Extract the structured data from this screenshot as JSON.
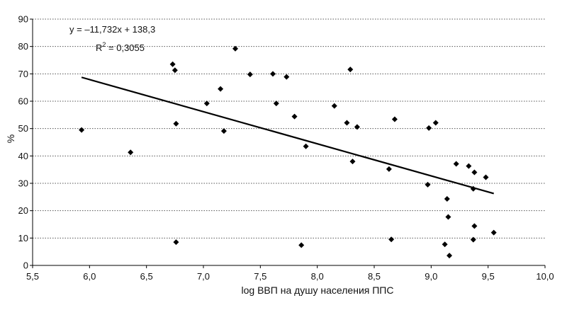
{
  "chart_data": {
    "type": "scatter",
    "xlabel": "log ВВП на душу населения ППС",
    "ylabel": "%",
    "xlim": [
      5.5,
      10.0
    ],
    "ylim": [
      0,
      90
    ],
    "x_ticks": [
      "5,5",
      "6,0",
      "6,5",
      "7,0",
      "7,5",
      "8,0",
      "8,5",
      "9,0",
      "9,5",
      "10,0"
    ],
    "y_ticks": [
      "0",
      "10",
      "20",
      "30",
      "40",
      "50",
      "60",
      "70",
      "80",
      "90"
    ],
    "grid": "horizontal-dotted",
    "trendline": {
      "slope": -11.732,
      "intercept": 138.3,
      "x_start": 5.93,
      "x_end": 9.55,
      "equation": "y = –11,732x + 138,3",
      "r2_prefix": "R",
      "r2_sup": "2",
      "r2_value": " = 0,3055"
    },
    "points": [
      {
        "x": 5.93,
        "y": 49.5
      },
      {
        "x": 6.36,
        "y": 41.3
      },
      {
        "x": 6.73,
        "y": 73.5
      },
      {
        "x": 6.75,
        "y": 71.3
      },
      {
        "x": 6.76,
        "y": 51.8
      },
      {
        "x": 6.76,
        "y": 8.5
      },
      {
        "x": 7.03,
        "y": 59.2
      },
      {
        "x": 7.15,
        "y": 64.5
      },
      {
        "x": 7.18,
        "y": 49.1
      },
      {
        "x": 7.28,
        "y": 79.2
      },
      {
        "x": 7.41,
        "y": 69.8
      },
      {
        "x": 7.61,
        "y": 70.0
      },
      {
        "x": 7.64,
        "y": 59.2
      },
      {
        "x": 7.73,
        "y": 68.9
      },
      {
        "x": 7.8,
        "y": 54.4
      },
      {
        "x": 7.86,
        "y": 7.4
      },
      {
        "x": 7.9,
        "y": 43.5
      },
      {
        "x": 8.15,
        "y": 58.3
      },
      {
        "x": 8.26,
        "y": 52.1
      },
      {
        "x": 8.29,
        "y": 71.6
      },
      {
        "x": 8.31,
        "y": 38.0
      },
      {
        "x": 8.35,
        "y": 50.6
      },
      {
        "x": 8.63,
        "y": 35.2
      },
      {
        "x": 8.65,
        "y": 9.5
      },
      {
        "x": 8.68,
        "y": 53.4
      },
      {
        "x": 8.97,
        "y": 29.5
      },
      {
        "x": 8.98,
        "y": 50.2
      },
      {
        "x": 9.04,
        "y": 52.1
      },
      {
        "x": 9.12,
        "y": 7.7
      },
      {
        "x": 9.14,
        "y": 24.3
      },
      {
        "x": 9.15,
        "y": 17.7
      },
      {
        "x": 9.16,
        "y": 3.6
      },
      {
        "x": 9.22,
        "y": 37.1
      },
      {
        "x": 9.33,
        "y": 36.3
      },
      {
        "x": 9.37,
        "y": 28.0
      },
      {
        "x": 9.37,
        "y": 9.4
      },
      {
        "x": 9.38,
        "y": 34.0
      },
      {
        "x": 9.38,
        "y": 14.4
      },
      {
        "x": 9.48,
        "y": 32.2
      },
      {
        "x": 9.55,
        "y": 12.0
      }
    ]
  }
}
